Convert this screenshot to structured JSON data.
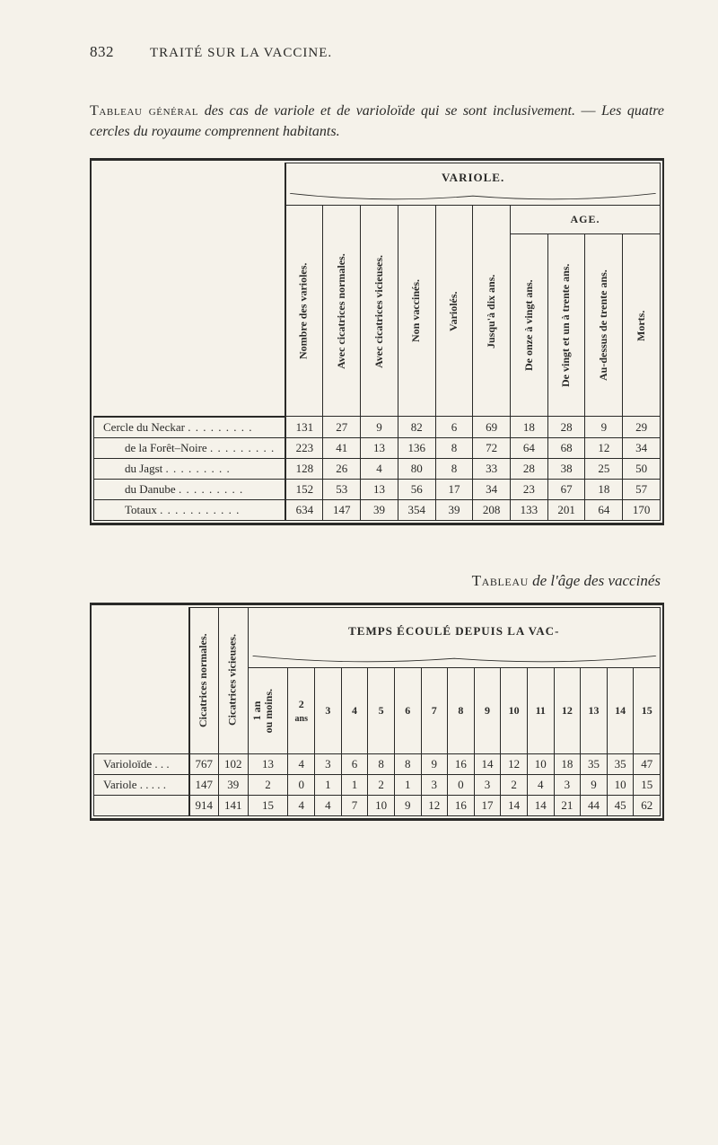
{
  "page_number": "832",
  "running_title": "TRAITÉ SUR LA VACCINE.",
  "caption1_html": "<span class='sc'>Tableau général</span> <span class='it'>des cas de variole et de varioloïde qui se sont inclusivement.</span> — <span class='it'>Les quatre cercles du royaume comprennent habitants.</span>",
  "subcaption2_html": "<span class='sc'>Tableau</span> <span class='it'>de l'âge des vaccinés</span>",
  "table1": {
    "group_label": "VARIOLE.",
    "age_label": "AGE.",
    "col_headers": [
      "Nombre des varioles.",
      "Avec cicatrices normales.",
      "Avec cicatrices vicieuses.",
      "Non vaccinés.",
      "Variolés.",
      "Jusqu'à dix ans.",
      "De onze à vingt ans.",
      "De vingt et un à trente ans.",
      "Au-dessus de trente ans.",
      "Morts."
    ],
    "rows": [
      {
        "label": "Cercle du Neckar",
        "indent": false,
        "vals": [
          "131",
          "27",
          "9",
          "82",
          "6",
          "69",
          "18",
          "28",
          "9",
          "29"
        ]
      },
      {
        "label": "de la Forêt–Noire",
        "indent": true,
        "vals": [
          "223",
          "41",
          "13",
          "136",
          "8",
          "72",
          "64",
          "68",
          "12",
          "34"
        ]
      },
      {
        "label": "du Jagst",
        "indent": true,
        "vals": [
          "128",
          "26",
          "4",
          "80",
          "8",
          "33",
          "28",
          "38",
          "25",
          "50"
        ]
      },
      {
        "label": "du Danube",
        "indent": true,
        "vals": [
          "152",
          "53",
          "13",
          "56",
          "17",
          "34",
          "23",
          "67",
          "18",
          "57"
        ]
      }
    ],
    "totals": {
      "label": "Totaux",
      "vals": [
        "634",
        "147",
        "39",
        "354",
        "39",
        "208",
        "133",
        "201",
        "64",
        "170"
      ]
    }
  },
  "table2": {
    "group_label": "TEMPS ÉCOULÉ DEPUIS LA VAC-",
    "left_vheaders": [
      "Cicatrices normales.",
      "Cicatrices vicieuses."
    ],
    "col3_label_top": "1 an",
    "col3_label_bot": "ou moins.",
    "year_cols": [
      "2",
      "3",
      "4",
      "5",
      "6",
      "7",
      "8",
      "9",
      "10",
      "11",
      "12",
      "13",
      "14",
      "15"
    ],
    "ans_label": "ans",
    "rows": [
      {
        "label": "Varioloïde . . .",
        "vals": [
          "767",
          "102",
          "13",
          "4",
          "3",
          "6",
          "8",
          "8",
          "9",
          "16",
          "14",
          "12",
          "10",
          "18",
          "35",
          "35",
          "47"
        ]
      },
      {
        "label": "Variole . . . . .",
        "vals": [
          "147",
          "39",
          "2",
          "0",
          "1",
          "1",
          "2",
          "1",
          "3",
          "0",
          "3",
          "2",
          "4",
          "3",
          "9",
          "10",
          "15"
        ]
      }
    ],
    "totals": [
      "914",
      "141",
      "15",
      "4",
      "4",
      "7",
      "10",
      "9",
      "12",
      "16",
      "17",
      "14",
      "14",
      "21",
      "44",
      "45",
      "62"
    ]
  }
}
